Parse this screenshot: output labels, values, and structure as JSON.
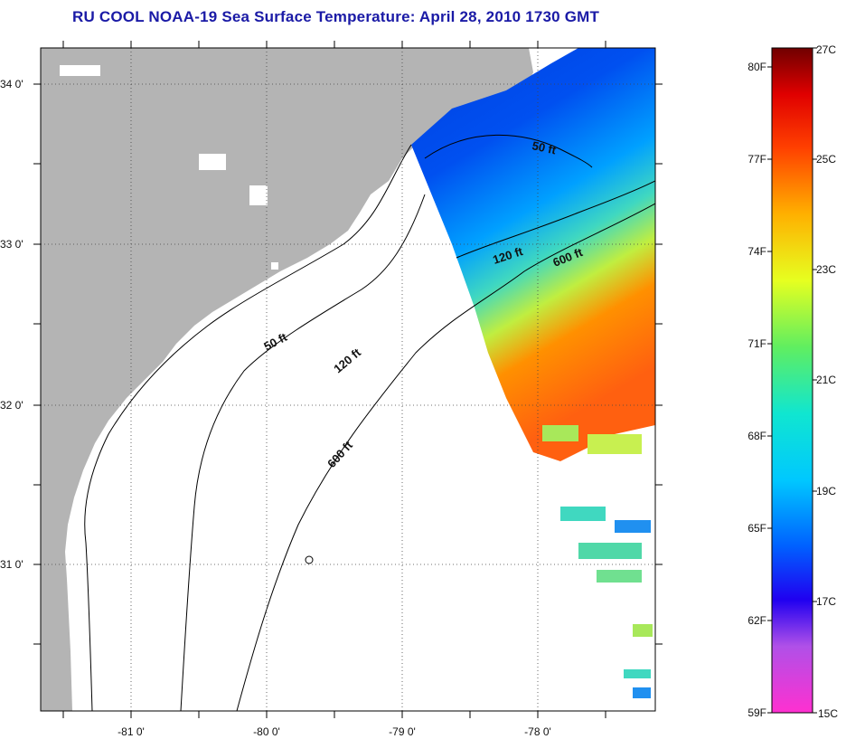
{
  "title": "RU COOL  NOAA-19  Sea Surface Temperature:  April 28, 2010 1730 GMT",
  "axes": {
    "lon_ticks": [
      "-81 0'",
      "-80 0'",
      "-79 0'",
      "-78 0'"
    ],
    "lat_ticks": [
      "34 0'",
      "33 0'",
      "32 0'",
      "31 0'"
    ]
  },
  "contours": {
    "shelf_50": "50 ft",
    "shelf_120": "120 ft",
    "shelf_600": "600 ft",
    "offshore_50": "50 ft",
    "offshore_120": "120 ft",
    "offshore_600": "600 ft"
  },
  "colorbar": {
    "f_labels": [
      "80F",
      "77F",
      "74F",
      "71F",
      "68F",
      "65F",
      "62F",
      "59F"
    ],
    "c_labels": [
      "27C",
      "25C",
      "23C",
      "21C",
      "19C",
      "17C",
      "15C"
    ]
  },
  "colors": {
    "land": "#b4b4b4",
    "ocean_no_data": "#ffffff",
    "title": "#1a1aa6",
    "gradient": [
      "#ff30d0",
      "#c060f0",
      "#2000f0",
      "#0060ff",
      "#00d8ff",
      "#20e080",
      "#a0f040",
      "#ffff00",
      "#ffa000",
      "#ff4000",
      "#ff0000",
      "#700000"
    ]
  }
}
